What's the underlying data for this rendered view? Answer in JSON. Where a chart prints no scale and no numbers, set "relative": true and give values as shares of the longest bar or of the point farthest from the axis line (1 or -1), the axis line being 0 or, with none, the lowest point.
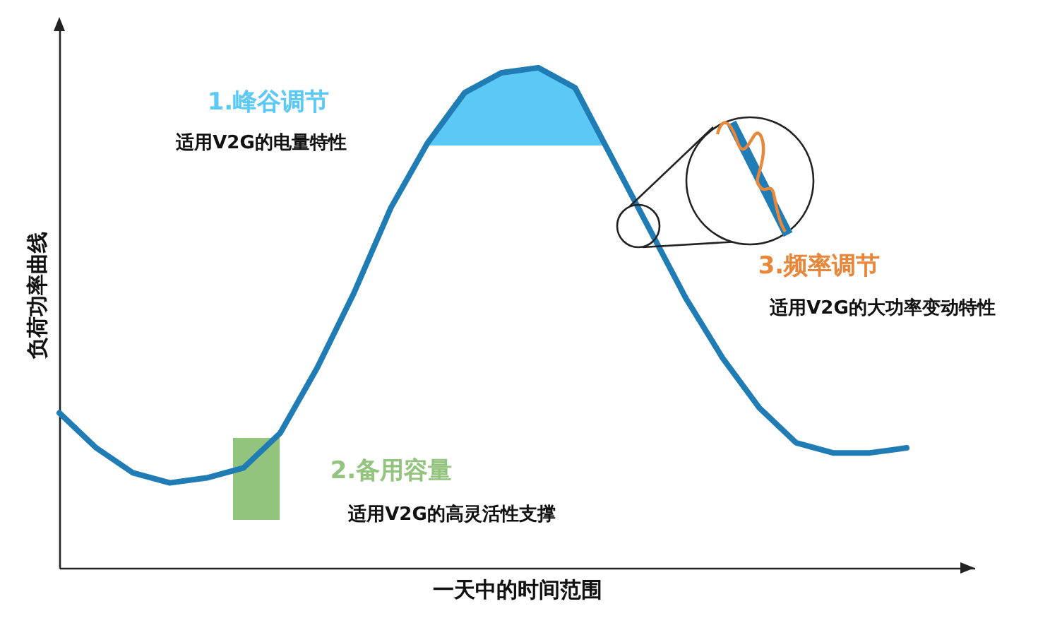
{
  "chart_data": {
    "type": "line",
    "relative": true,
    "xlabel": "一天中的时间范围",
    "ylabel": "负荷功率曲线",
    "categories": [
      null,
      null,
      null,
      null,
      null,
      null,
      null,
      null,
      null,
      null,
      null,
      null,
      null,
      null,
      null,
      null,
      null,
      null,
      null,
      null,
      null,
      null,
      null,
      null
    ],
    "series": [
      {
        "color": "#1f7cb4",
        "values": [
          0.31,
          0.24,
          0.19,
          0.17,
          0.18,
          0.2,
          0.27,
          0.4,
          0.55,
          0.72,
          0.85,
          0.95,
          0.99,
          1,
          0.96,
          0.82,
          0.68,
          0.54,
          0.42,
          0.32,
          0.25,
          0.23,
          0.23,
          0.24
        ]
      }
    ],
    "annotations": [
      "1.峰谷调节",
      "适用V2G的电量特性",
      "2.备用容量",
      "适用V2G的高灵活性支撑",
      "3.频率调节",
      "适用V2G的大功率变动特性"
    ],
    "marker": "none",
    "line_style": "solid"
  }
}
